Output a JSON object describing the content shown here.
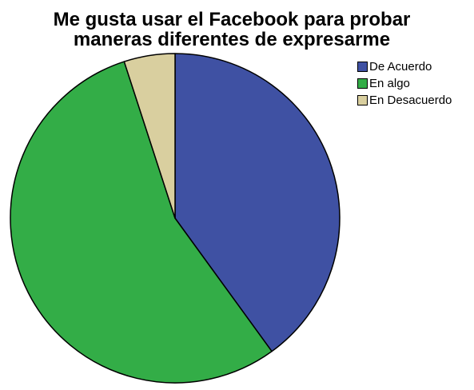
{
  "chart_data": {
    "type": "pie",
    "title_lines": [
      "Me gusta usar el Facebook para probar",
      "maneras diferentes de expresarme"
    ],
    "categories": [
      "De Acuerdo",
      "En algo",
      "En Desacuerdo"
    ],
    "values": [
      40,
      55,
      5
    ],
    "colors": [
      "#3f51a3",
      "#33ad47",
      "#d9cf9f"
    ],
    "legend_position": "top-right",
    "start": "12 o'clock, clockwise"
  }
}
